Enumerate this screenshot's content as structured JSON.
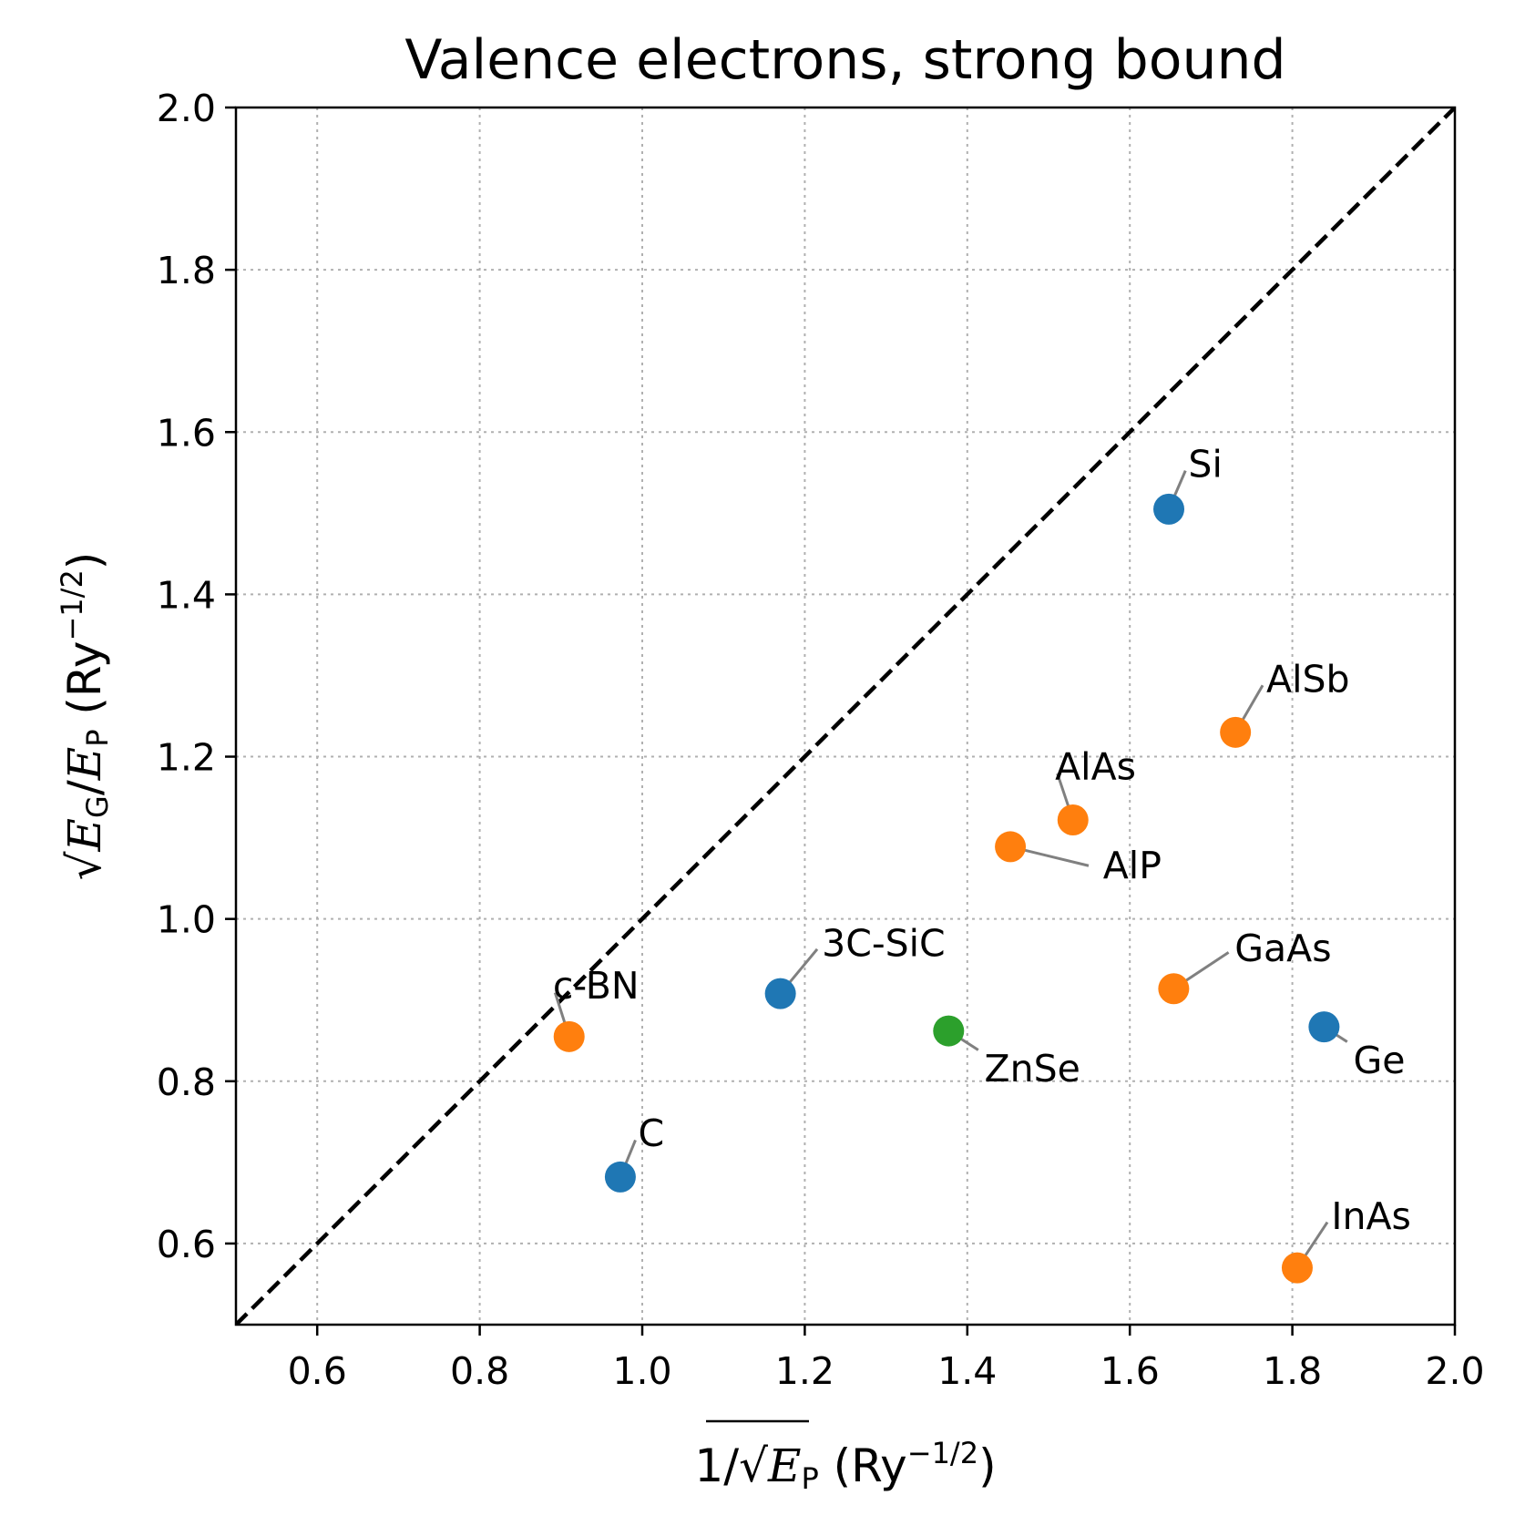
{
  "chart_data": {
    "type": "scatter",
    "title": "Valence electrons, strong bound",
    "xlabel": {
      "prefix": "1/√",
      "symbol": "E",
      "subscript": "P",
      "unit_open": " (Ry",
      "exponent": "−1/2",
      "unit_close": ")"
    },
    "ylabel": {
      "prefix": "√",
      "symbol1": "E",
      "sub1": "G",
      "slash": "/",
      "symbol2": "E",
      "sub2": "P",
      "unit_open": " (Ry",
      "exponent": "−1/2",
      "unit_close": ")"
    },
    "xlim": [
      0.5,
      2.0
    ],
    "ylim": [
      0.5,
      2.0
    ],
    "xticks": [
      "0.6",
      "0.8",
      "1.0",
      "1.2",
      "1.4",
      "1.6",
      "1.8",
      "2.0"
    ],
    "yticks": [
      "0.6",
      "0.8",
      "1.0",
      "1.2",
      "1.4",
      "1.6",
      "1.8",
      "2.0"
    ],
    "grid": true,
    "reference_line": {
      "style": "dashed",
      "from": [
        0.5,
        0.5
      ],
      "to": [
        2.0,
        2.0
      ],
      "color": "#000000"
    },
    "colors": {
      "blue": "#1f77b4",
      "orange": "#ff7f0e",
      "green": "#2ca02c",
      "leader": "#808080"
    },
    "points": [
      {
        "label": "Si",
        "x": 1.648,
        "y": 1.505,
        "color": "#1f77b4",
        "label_x": 1.672,
        "label_y": 1.545,
        "anchor": "start"
      },
      {
        "label": "AlSb",
        "x": 1.73,
        "y": 1.23,
        "color": "#ff7f0e",
        "label_x": 1.768,
        "label_y": 1.28,
        "anchor": "start"
      },
      {
        "label": "AlAs",
        "x": 1.53,
        "y": 1.122,
        "color": "#ff7f0e",
        "label_x": 1.508,
        "label_y": 1.172,
        "anchor": "start"
      },
      {
        "label": "AlP",
        "x": 1.453,
        "y": 1.089,
        "color": "#ff7f0e",
        "label_x": 1.567,
        "label_y": 1.05,
        "anchor": "start"
      },
      {
        "label": "3C-SiC",
        "x": 1.17,
        "y": 0.908,
        "color": "#1f77b4",
        "label_x": 1.221,
        "label_y": 0.954,
        "anchor": "start"
      },
      {
        "label": "GaAs",
        "x": 1.654,
        "y": 0.914,
        "color": "#ff7f0e",
        "label_x": 1.729,
        "label_y": 0.948,
        "anchor": "start"
      },
      {
        "label": "c-BN",
        "x": 0.91,
        "y": 0.855,
        "color": "#ff7f0e",
        "label_x": 0.89,
        "label_y": 0.902,
        "anchor": "start"
      },
      {
        "label": "ZnSe",
        "x": 1.377,
        "y": 0.862,
        "color": "#2ca02c",
        "label_x": 1.421,
        "label_y": 0.8,
        "anchor": "start"
      },
      {
        "label": "Ge",
        "x": 1.839,
        "y": 0.867,
        "color": "#1f77b4",
        "label_x": 1.875,
        "label_y": 0.81,
        "anchor": "start"
      },
      {
        "label": "C",
        "x": 0.973,
        "y": 0.682,
        "color": "#1f77b4",
        "label_x": 0.995,
        "label_y": 0.72,
        "anchor": "start"
      },
      {
        "label": "InAs",
        "x": 1.806,
        "y": 0.57,
        "color": "#ff7f0e",
        "label_x": 1.848,
        "label_y": 0.618,
        "anchor": "start"
      }
    ]
  }
}
